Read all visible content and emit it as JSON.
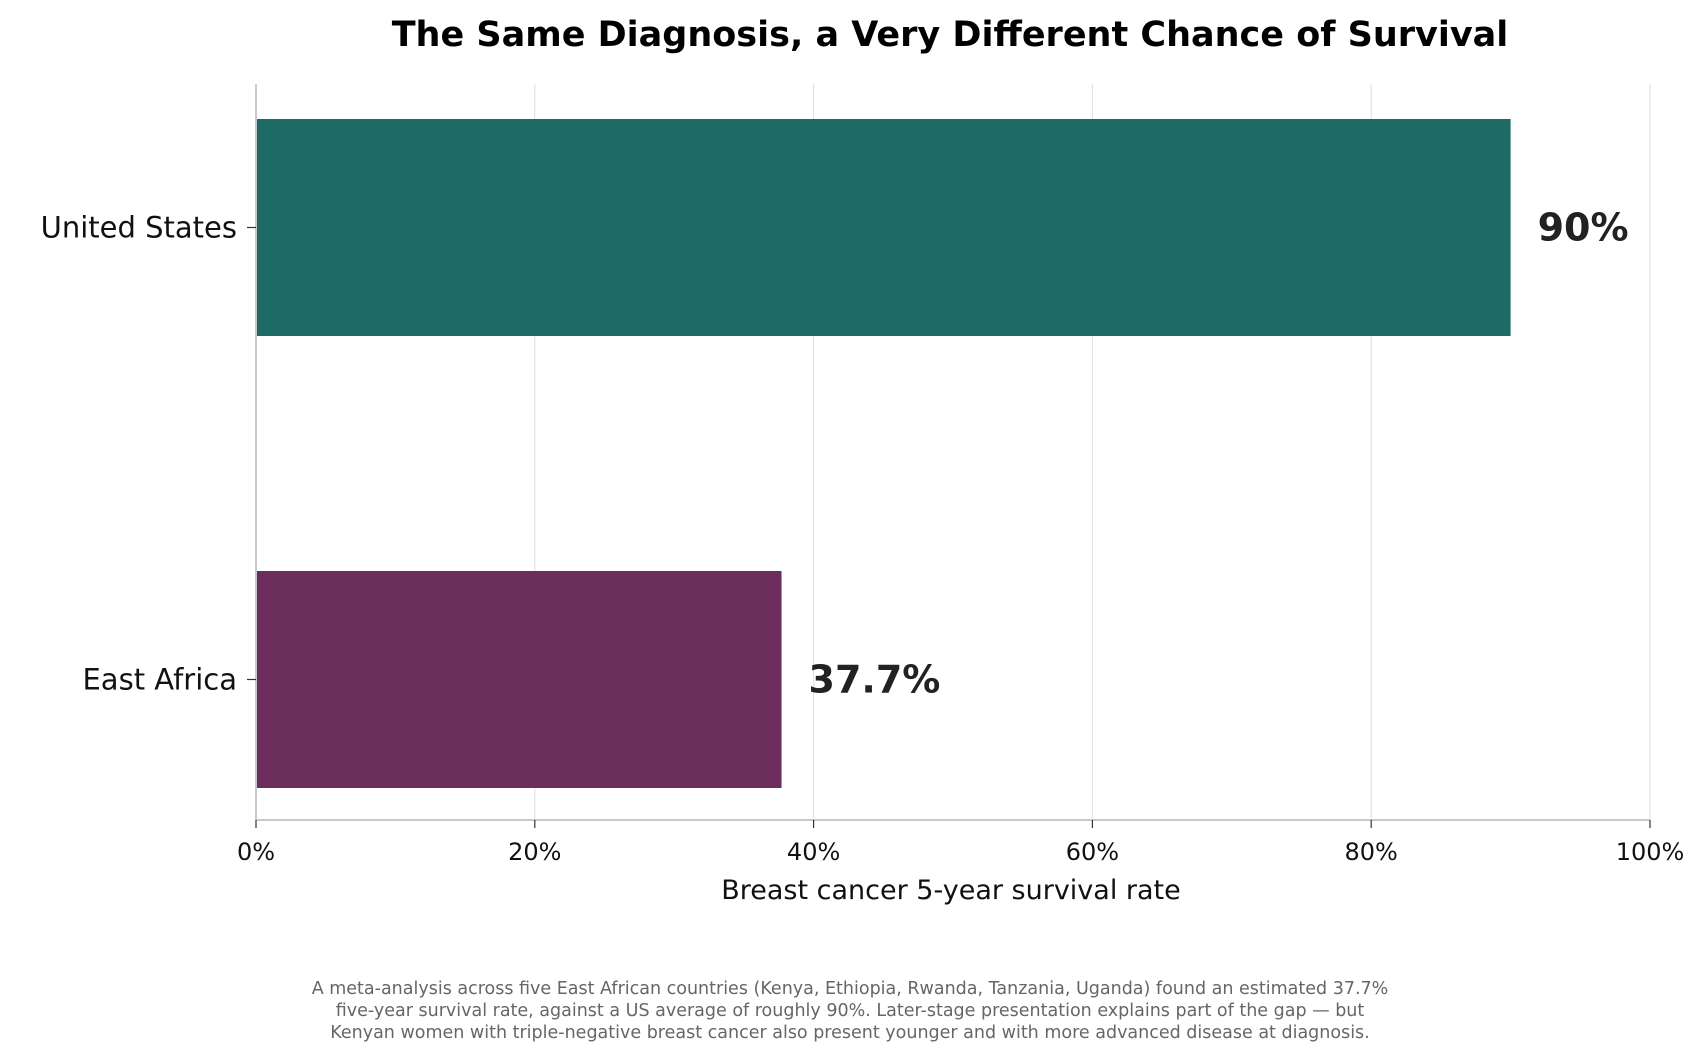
{
  "chart_data": {
    "type": "bar",
    "orientation": "horizontal",
    "title": "The Same Diagnosis, a Very Different Chance of Survival",
    "xlabel": "Breast cancer 5-year survival rate",
    "ylabel": "",
    "categories": [
      "United States",
      "East Africa"
    ],
    "values": [
      90,
      37.7
    ],
    "value_labels": [
      "90%",
      "37.7%"
    ],
    "colors": [
      "#1d6b64",
      "#6a2d5c"
    ],
    "xlim": [
      0,
      100
    ],
    "xticks": [
      0,
      20,
      40,
      60,
      80,
      100
    ],
    "xtick_labels": [
      "0%",
      "20%",
      "40%",
      "60%",
      "80%",
      "100%"
    ],
    "grid": "vertical",
    "legend": "none"
  },
  "caption": [
    "A meta-analysis across five East African countries (Kenya, Ethiopia, Rwanda, Tanzania, Uganda) found an estimated 37.7%",
    "five-year survival rate, against a US average of roughly 90%. Later-stage presentation explains part of the gap — but",
    "Kenyan women with triple-negative breast cancer also present younger and with more advanced disease at diagnosis."
  ]
}
